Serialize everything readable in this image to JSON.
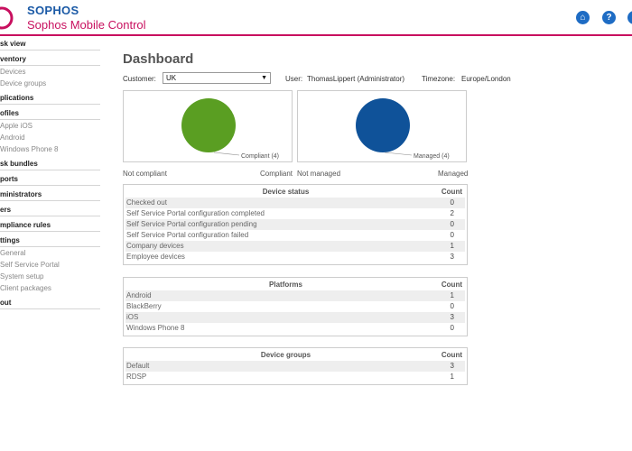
{
  "header": {
    "brand": "SOPHOS",
    "product": "Sophos Mobile Control",
    "icons": [
      "home-icon",
      "help-icon",
      "logout-icon"
    ]
  },
  "sidebar": {
    "task_view": "sk view",
    "inventory": "ventory",
    "inventory_items": [
      "Devices",
      "Device groups"
    ],
    "applications": "plications",
    "profiles": "ofiles",
    "profile_items": [
      "Apple iOS",
      "Android",
      "Windows Phone 8"
    ],
    "task_bundles": "sk bundles",
    "reports": "ports",
    "administrators": "ministrators",
    "users": "ers",
    "compliance_rules": "mpliance rules",
    "settings": "ttings",
    "settings_items": [
      "General",
      "Self Service Portal",
      "System setup",
      "Client packages"
    ],
    "logout": "out"
  },
  "main": {
    "title": "Dashboard",
    "customer_label": "Customer:",
    "customer_value": "UK",
    "user_label": "User:",
    "user_value": "ThomasLippert (Administrator)",
    "timezone_label": "Timezone:",
    "timezone_value": "Europe/London"
  },
  "charts": {
    "compliance": {
      "slice_label": "Compliant (4)",
      "left_caption": "Not compliant",
      "right_caption": "Compliant",
      "color": "#5a9e22"
    },
    "management": {
      "slice_label": "Managed (4)",
      "left_caption": "Not managed",
      "right_caption": "Managed",
      "color": "#0f5299"
    }
  },
  "chart_data": [
    {
      "type": "pie",
      "categories": [
        "Not compliant",
        "Compliant"
      ],
      "values": [
        0,
        4
      ],
      "annotations": [
        "Compliant (4)"
      ]
    },
    {
      "type": "pie",
      "categories": [
        "Not managed",
        "Managed"
      ],
      "values": [
        0,
        4
      ],
      "annotations": [
        "Managed (4)"
      ]
    }
  ],
  "device_status": {
    "title": "Device status",
    "count_header": "Count",
    "rows": [
      {
        "label": "Checked out",
        "count": "0"
      },
      {
        "label": "Self Service Portal configuration completed",
        "count": "2"
      },
      {
        "label": "Self Service Portal configuration pending",
        "count": "0"
      },
      {
        "label": "Self Service Portal configuration failed",
        "count": "0"
      },
      {
        "label": "Company devices",
        "count": "1"
      },
      {
        "label": "Employee devices",
        "count": "3"
      }
    ]
  },
  "platforms": {
    "title": "Platforms",
    "count_header": "Count",
    "rows": [
      {
        "label": "Android",
        "count": "1"
      },
      {
        "label": "BlackBerry",
        "count": "0"
      },
      {
        "label": "iOS",
        "count": "3"
      },
      {
        "label": "Windows Phone 8",
        "count": "0"
      }
    ]
  },
  "device_groups": {
    "title": "Device groups",
    "count_header": "Count",
    "rows": [
      {
        "label": "Default",
        "count": "3"
      },
      {
        "label": "RDSP",
        "count": "1"
      }
    ]
  }
}
